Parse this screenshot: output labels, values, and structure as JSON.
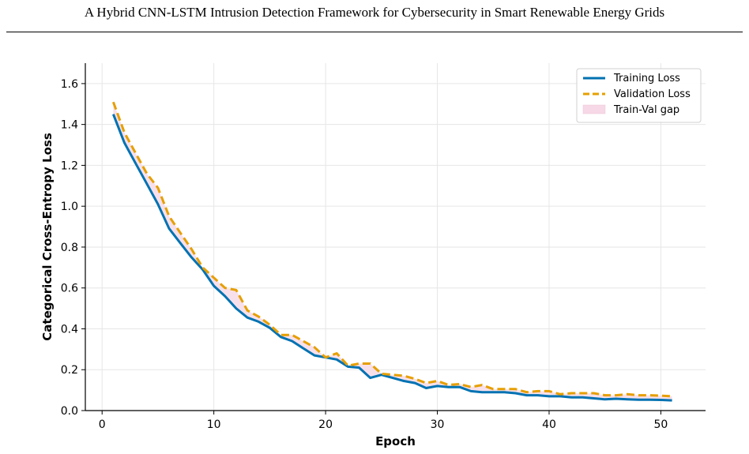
{
  "header": {
    "title": "A Hybrid CNN-LSTM Intrusion Detection Framework for Cybersecurity in Smart Renewable Energy Grids"
  },
  "chart_data": {
    "type": "line",
    "title": "",
    "xlabel": "Epoch",
    "ylabel": "Categorical Cross-Entropy Loss",
    "xlim": [
      -1.5,
      54
    ],
    "ylim": [
      0,
      1.7
    ],
    "xticks": [
      0,
      10,
      20,
      30,
      40,
      50
    ],
    "yticks": [
      0.0,
      0.2,
      0.4,
      0.6,
      0.8,
      1.0,
      1.2,
      1.4,
      1.6
    ],
    "grid": true,
    "legend_position": "top-right",
    "x": [
      1,
      2,
      3,
      4,
      5,
      6,
      7,
      8,
      9,
      10,
      11,
      12,
      13,
      14,
      15,
      16,
      17,
      18,
      19,
      20,
      21,
      22,
      23,
      24,
      25,
      26,
      27,
      28,
      29,
      30,
      31,
      32,
      33,
      34,
      35,
      36,
      37,
      38,
      39,
      40,
      41,
      42,
      43,
      44,
      45,
      46,
      47,
      48,
      49,
      50,
      51
    ],
    "series": [
      {
        "name": "Training Loss",
        "color": "#0072b2",
        "style": "solid",
        "values": [
          1.45,
          1.31,
          1.21,
          1.11,
          1.01,
          0.89,
          0.82,
          0.75,
          0.69,
          0.61,
          0.56,
          0.5,
          0.455,
          0.435,
          0.405,
          0.36,
          0.34,
          0.305,
          0.27,
          0.26,
          0.25,
          0.215,
          0.21,
          0.16,
          0.175,
          0.16,
          0.145,
          0.135,
          0.11,
          0.12,
          0.115,
          0.115,
          0.095,
          0.09,
          0.09,
          0.09,
          0.085,
          0.075,
          0.075,
          0.07,
          0.07,
          0.065,
          0.065,
          0.06,
          0.055,
          0.058,
          0.055,
          0.053,
          0.053,
          0.052,
          0.05
        ]
      },
      {
        "name": "Validation Loss",
        "color": "#e69f00",
        "style": "dashed",
        "values": [
          1.51,
          1.36,
          1.26,
          1.16,
          1.09,
          0.95,
          0.87,
          0.79,
          0.7,
          0.65,
          0.6,
          0.59,
          0.49,
          0.46,
          0.42,
          0.37,
          0.37,
          0.34,
          0.31,
          0.26,
          0.28,
          0.22,
          0.23,
          0.23,
          0.18,
          0.175,
          0.17,
          0.155,
          0.135,
          0.145,
          0.125,
          0.13,
          0.115,
          0.125,
          0.105,
          0.105,
          0.105,
          0.09,
          0.095,
          0.095,
          0.08,
          0.085,
          0.085,
          0.085,
          0.075,
          0.075,
          0.08,
          0.075,
          0.075,
          0.073,
          0.07
        ]
      }
    ],
    "fill_between": {
      "name": "Train-Val gap",
      "color": "#f6d8e6"
    }
  }
}
